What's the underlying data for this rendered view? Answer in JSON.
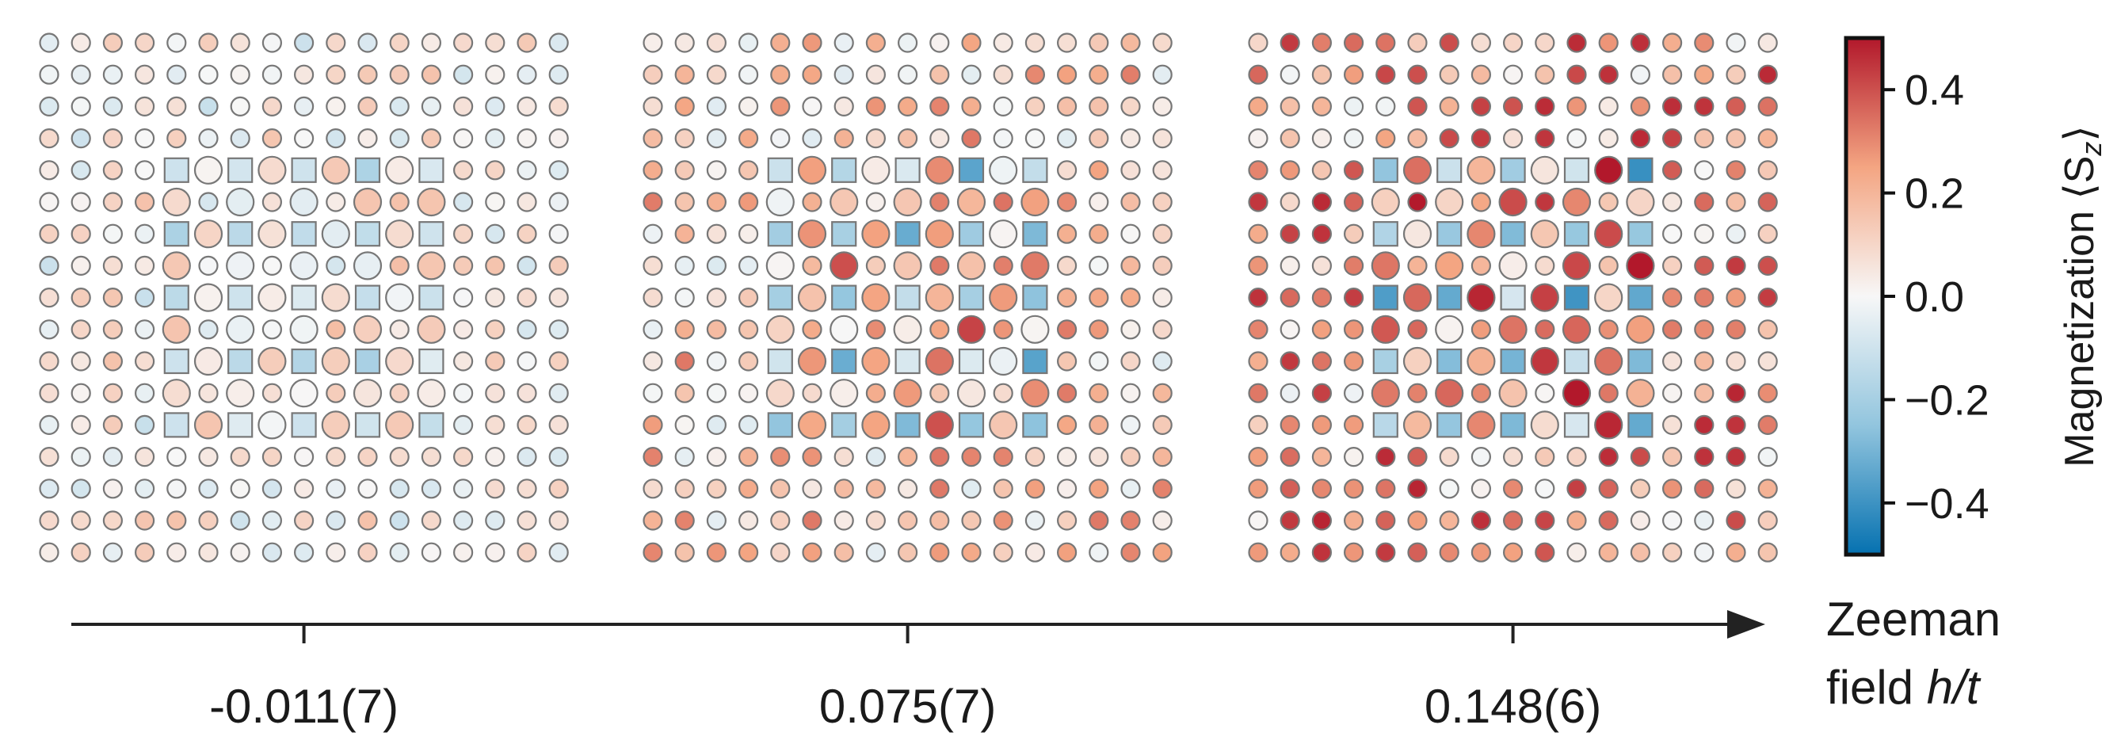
{
  "chart_data": {
    "type": "heatmap",
    "panels": [
      {
        "field_label": "-0.011(7)",
        "field_value": -0.011,
        "grid_size": 17,
        "large_site_amplitude": 0.18,
        "background_amplitude": 0.14,
        "seed": 3
      },
      {
        "field_label": "0.075(7)",
        "field_value": 0.075,
        "grid_size": 17,
        "large_site_amplitude": 0.38,
        "background_amplitude": 0.2,
        "seed": 11
      },
      {
        "field_label": "0.148(6)",
        "field_value": 0.148,
        "grid_size": 17,
        "large_site_amplitude": 0.46,
        "background_amplitude": 0.26,
        "seed": 29
      }
    ],
    "colorbar": {
      "label": "Magnetization ⟨S",
      "label_sub": "z",
      "label_close": "⟩",
      "range": [
        -0.5,
        0.5
      ],
      "ticks": [
        0.4,
        0.2,
        0.0,
        -0.2,
        -0.4
      ],
      "tick_labels": [
        "0.4",
        "0.2",
        "0.0",
        "−0.2",
        "−0.4"
      ],
      "colors": [
        "#0571b0",
        "#92c5de",
        "#f7f7f7",
        "#f4a582",
        "#b2182b"
      ]
    },
    "axis": {
      "label_line1": "Zeeman",
      "label_line2_prefix": "field ",
      "label_line2_italic": "h/t"
    }
  }
}
